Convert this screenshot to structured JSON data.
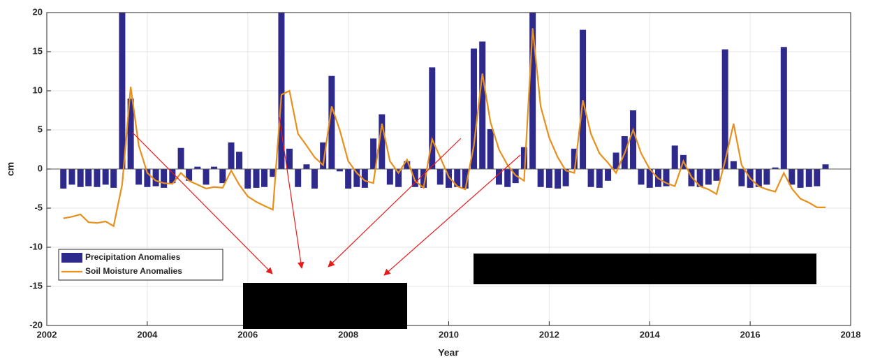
{
  "chart_data": {
    "type": "combo",
    "xlabel": "Year",
    "ylabel": "cm",
    "x": [
      2002.33,
      2002.5,
      2002.67,
      2002.83,
      2003.0,
      2003.17,
      2003.33,
      2003.5,
      2003.67,
      2003.83,
      2004.0,
      2004.17,
      2004.33,
      2004.5,
      2004.67,
      2004.83,
      2005.0,
      2005.17,
      2005.33,
      2005.5,
      2005.67,
      2005.83,
      2006.0,
      2006.17,
      2006.33,
      2006.5,
      2006.67,
      2006.83,
      2007.0,
      2007.17,
      2007.33,
      2007.5,
      2007.67,
      2007.83,
      2008.0,
      2008.17,
      2008.33,
      2008.5,
      2008.67,
      2008.83,
      2009.0,
      2009.17,
      2009.33,
      2009.5,
      2009.67,
      2009.83,
      2010.0,
      2010.17,
      2010.33,
      2010.5,
      2010.67,
      2010.83,
      2011.0,
      2011.17,
      2011.33,
      2011.5,
      2011.67,
      2011.83,
      2012.0,
      2012.17,
      2012.33,
      2012.5,
      2012.67,
      2012.83,
      2013.0,
      2013.17,
      2013.33,
      2013.5,
      2013.67,
      2013.83,
      2014.0,
      2014.17,
      2014.33,
      2014.5,
      2014.67,
      2014.83,
      2015.0,
      2015.17,
      2015.33,
      2015.5,
      2015.67,
      2015.83,
      2016.0,
      2016.17,
      2016.33,
      2016.5,
      2016.67,
      2016.83,
      2017.0,
      2017.17,
      2017.33,
      2017.5
    ],
    "series": [
      {
        "name": "Precipitation Anomalies",
        "type": "bar",
        "color": "#2e2a8c",
        "values": [
          -2.5,
          -2.0,
          -2.3,
          -2.2,
          -2.3,
          -2.0,
          -2.4,
          20,
          9.0,
          -2.0,
          -2.3,
          -2.2,
          -2.4,
          -1.8,
          2.7,
          -1.5,
          0.3,
          -2.0,
          0.3,
          -1.8,
          3.4,
          2.2,
          -2.5,
          -2.4,
          -2.3,
          -1.0,
          20,
          2.6,
          -2.3,
          0.6,
          -2.5,
          3.4,
          11.9,
          -0.3,
          -2.5,
          -2.3,
          -2.4,
          3.9,
          7.0,
          -2.0,
          -2.3,
          1.0,
          -2.3,
          -2.4,
          13.0,
          -2.0,
          -2.4,
          -2.3,
          -2.5,
          15.4,
          16.3,
          5.1,
          -2.0,
          -2.3,
          -1.8,
          2.8,
          20,
          -2.3,
          -2.4,
          -2.5,
          -2.2,
          2.6,
          17.8,
          -2.3,
          -2.4,
          -1.5,
          2.1,
          4.2,
          7.5,
          -2.0,
          -2.4,
          -2.3,
          -2.2,
          3.0,
          1.8,
          -2.2,
          -2.3,
          -2.0,
          -1.5,
          15.3,
          1.0,
          -2.2,
          -2.4,
          -2.3,
          -2.0,
          0.2,
          15.6,
          -2.0,
          -2.4,
          -2.3,
          -2.2,
          0.6
        ]
      },
      {
        "name": "Soil Moisture Anomalies",
        "type": "line",
        "color": "#e8901c",
        "values": [
          -6.3,
          -6.1,
          -5.8,
          -6.8,
          -6.9,
          -6.7,
          -7.3,
          -2.0,
          10.5,
          3.0,
          -0.5,
          -1.5,
          -1.8,
          -1.9,
          -0.5,
          -1.5,
          -2.0,
          -2.5,
          -2.3,
          -2.4,
          -0.2,
          -2.0,
          -3.5,
          -4.2,
          -4.7,
          -5.2,
          9.5,
          10.0,
          4.5,
          3.0,
          1.5,
          0.5,
          8.0,
          5.0,
          1.0,
          -0.5,
          -1.5,
          -1.8,
          5.8,
          1.0,
          -0.5,
          1.2,
          -1.5,
          -2.4,
          3.8,
          1.5,
          -1.0,
          -2.2,
          -2.6,
          3.0,
          12.2,
          6.0,
          2.5,
          0.5,
          -0.8,
          -1.5,
          18.0,
          8.0,
          4.0,
          1.5,
          -0.2,
          -0.5,
          8.8,
          4.5,
          2.0,
          0.8,
          -0.5,
          2.0,
          5.0,
          2.0,
          0.0,
          -1.2,
          -1.8,
          -2.2,
          1.0,
          -1.0,
          -2.2,
          -2.6,
          -3.2,
          1.0,
          5.8,
          0.5,
          -1.2,
          -2.2,
          -2.6,
          -2.9,
          -0.5,
          -2.5,
          -3.8,
          -4.3,
          -4.9,
          -4.9
        ]
      }
    ],
    "xlim": [
      2002,
      2018
    ],
    "xticks": [
      2002,
      2004,
      2006,
      2008,
      2010,
      2012,
      2014,
      2016,
      2018
    ],
    "ylim": [
      -20,
      20
    ],
    "yticks": [
      -20,
      -15,
      -10,
      -5,
      0,
      5,
      10,
      15,
      20
    ],
    "grid": true,
    "legend": "lower left"
  }
}
